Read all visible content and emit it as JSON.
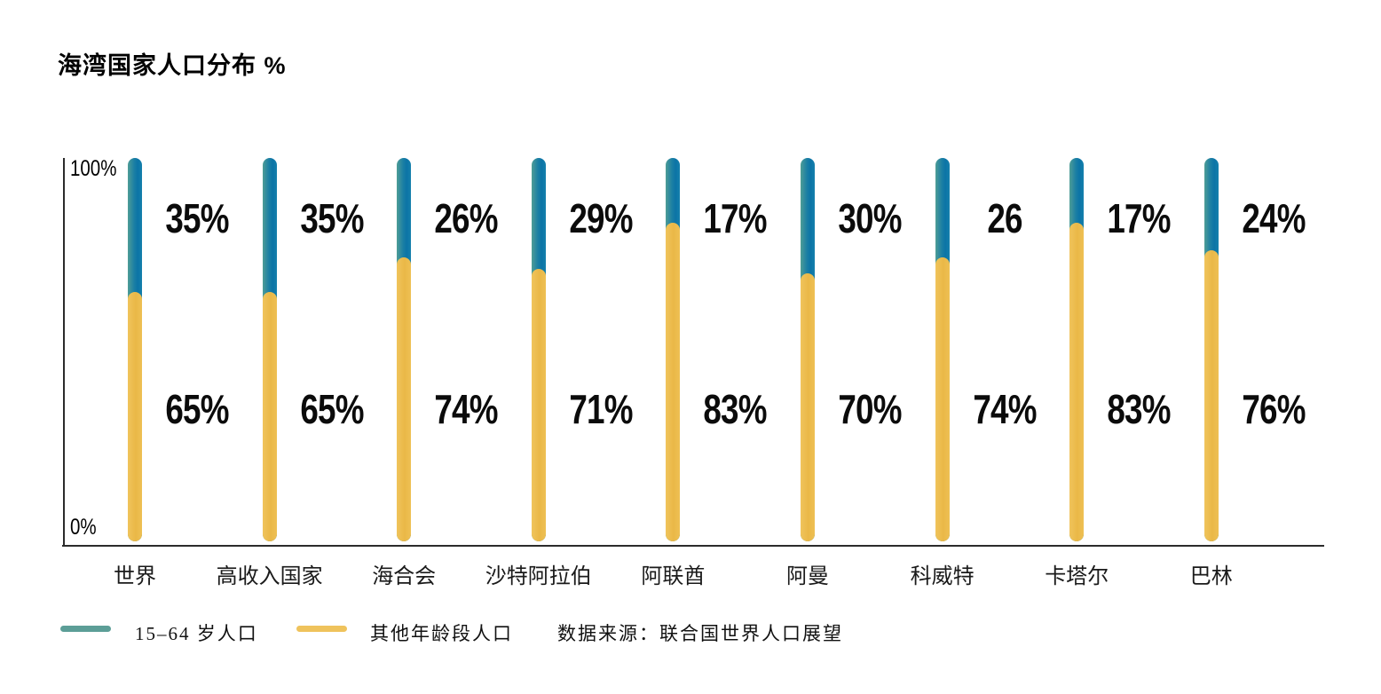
{
  "title": "海湾国家人口分布 %",
  "axis": {
    "y_top_label": "100%",
    "y_bottom_label": "0%"
  },
  "chart_data": {
    "type": "bar",
    "subtype": "stacked-100-percent-lollipop",
    "orientation": "vertical",
    "title": "海湾国家人口分布 %",
    "ylim": [
      0,
      100
    ],
    "y_ticks": [
      "0%",
      "100%"
    ],
    "grid": false,
    "legend_position": "bottom",
    "categories": [
      "世界",
      "高收入国家",
      "海合会",
      "沙特阿拉伯",
      "阿联酋",
      "阿曼",
      "科威特",
      "卡塔尔",
      "巴林"
    ],
    "series": [
      {
        "name": "15–64 岁人口",
        "stack_position": "top",
        "bar_color": "#0C76A8",
        "legend_color": "#5C9E97",
        "values": [
          35,
          35,
          26,
          29,
          17,
          30,
          26,
          17,
          24
        ],
        "labels": [
          "35%",
          "35%",
          "26%",
          "29%",
          "17%",
          "30%",
          "26",
          "17%",
          "24%"
        ]
      },
      {
        "name": "其他年龄段人口",
        "stack_position": "bottom",
        "bar_color": "#ECBB4D",
        "legend_color": "#EFC35C",
        "values": [
          65,
          65,
          74,
          71,
          83,
          70,
          74,
          83,
          76
        ],
        "labels": [
          "65%",
          "65%",
          "74%",
          "71%",
          "83%",
          "70%",
          "74%",
          "83%",
          "76%"
        ]
      }
    ],
    "source": "数据来源：联合国世界人口展望"
  },
  "legend": {
    "items": [
      {
        "label": "15–64 岁人口",
        "color": "#5C9E97"
      },
      {
        "label": "其他年龄段人口",
        "color": "#EFC35C"
      }
    ],
    "source": "数据来源：联合国世界人口展望"
  }
}
